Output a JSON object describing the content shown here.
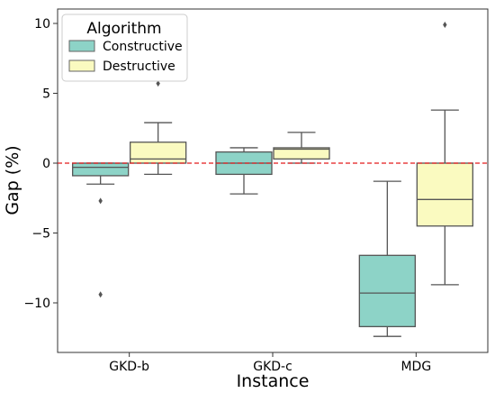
{
  "chart_data": {
    "type": "box",
    "xlabel": "Instance",
    "ylabel": "Gap (%)",
    "ylim": [
      -13.5,
      11
    ],
    "yticks": [
      10,
      5,
      0,
      -5,
      -10
    ],
    "ytick_labels": [
      "10",
      "5",
      "0",
      "−5",
      "−10"
    ],
    "categories": [
      "GKD-b",
      "GKD-c",
      "MDG"
    ],
    "reference_line": {
      "y": 0,
      "color": "#e31a1c",
      "style": "dashed"
    },
    "legend": {
      "title": "Algorithm",
      "placement": "top-left"
    },
    "series": [
      {
        "name": "Constructive",
        "color": "#8dd3c7",
        "boxes": [
          {
            "whisker_low": -1.5,
            "q1": -0.9,
            "median": -0.3,
            "q3": 0.0,
            "whisker_high": 0.0,
            "outliers": [
              -2.7,
              -9.4
            ]
          },
          {
            "whisker_low": -2.2,
            "q1": -0.8,
            "median": 0.0,
            "q3": 0.8,
            "whisker_high": 1.1,
            "outliers": []
          },
          {
            "whisker_low": -12.4,
            "q1": -11.7,
            "median": -9.3,
            "q3": -6.6,
            "whisker_high": -1.3,
            "outliers": []
          }
        ]
      },
      {
        "name": "Destructive",
        "color": "#fafac0",
        "boxes": [
          {
            "whisker_low": -0.8,
            "q1": 0.0,
            "median": 0.3,
            "q3": 1.5,
            "whisker_high": 2.9,
            "outliers": [
              5.7
            ]
          },
          {
            "whisker_low": 0.0,
            "q1": 0.3,
            "median": 1.0,
            "q3": 1.1,
            "whisker_high": 2.2,
            "outliers": []
          },
          {
            "whisker_low": -8.7,
            "q1": -4.5,
            "median": -2.6,
            "q3": 0.0,
            "whisker_high": 3.8,
            "outliers": [
              9.9
            ]
          }
        ]
      }
    ]
  }
}
